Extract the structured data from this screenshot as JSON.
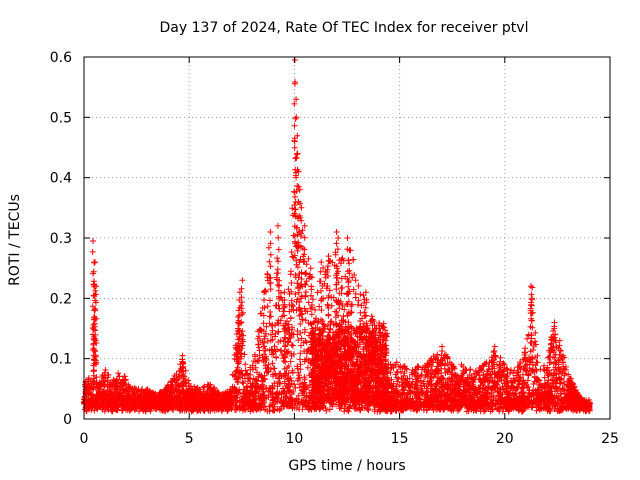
{
  "chart_data": {
    "type": "scatter",
    "title": "Day 137 of 2024, Rate Of TEC Index for receiver ptvl",
    "xlabel": "GPS time / hours",
    "ylabel": "ROTI / TECUs",
    "xlim": [
      0,
      25
    ],
    "ylim": [
      0,
      0.6
    ],
    "xticks": [
      0,
      5,
      10,
      15,
      20,
      25
    ],
    "yticks": [
      0,
      0.1,
      0.2,
      0.3,
      0.4,
      0.5,
      0.6
    ],
    "ytick_labels": [
      "0",
      "0.1",
      "0.2",
      "0.3",
      "0.4",
      "0.5",
      "0.6"
    ],
    "grid": true,
    "marker": "+",
    "color": "#ff0000",
    "profile": [
      [
        0.0,
        0.06
      ],
      [
        0.2,
        0.07
      ],
      [
        0.4,
        0.06
      ],
      [
        0.5,
        0.29
      ],
      [
        0.6,
        0.06
      ],
      [
        0.8,
        0.07
      ],
      [
        1.0,
        0.09
      ],
      [
        1.3,
        0.06
      ],
      [
        1.7,
        0.08
      ],
      [
        2.0,
        0.07
      ],
      [
        2.5,
        0.05
      ],
      [
        3.0,
        0.05
      ],
      [
        3.5,
        0.04
      ],
      [
        4.0,
        0.06
      ],
      [
        4.5,
        0.09
      ],
      [
        4.7,
        0.1
      ],
      [
        5.0,
        0.06
      ],
      [
        5.5,
        0.05
      ],
      [
        6.0,
        0.06
      ],
      [
        6.5,
        0.04
      ],
      [
        7.0,
        0.05
      ],
      [
        7.3,
        0.16
      ],
      [
        7.5,
        0.23
      ],
      [
        7.7,
        0.08
      ],
      [
        8.0,
        0.09
      ],
      [
        8.5,
        0.2
      ],
      [
        8.8,
        0.3
      ],
      [
        9.0,
        0.12
      ],
      [
        9.2,
        0.31
      ],
      [
        9.5,
        0.2
      ],
      [
        9.8,
        0.23
      ],
      [
        10.0,
        0.59
      ],
      [
        10.2,
        0.38
      ],
      [
        10.5,
        0.3
      ],
      [
        10.8,
        0.24
      ],
      [
        11.0,
        0.2
      ],
      [
        11.3,
        0.25
      ],
      [
        11.6,
        0.26
      ],
      [
        12.0,
        0.32
      ],
      [
        12.3,
        0.28
      ],
      [
        12.6,
        0.3
      ],
      [
        13.0,
        0.23
      ],
      [
        13.4,
        0.2
      ],
      [
        13.8,
        0.17
      ],
      [
        14.2,
        0.12
      ],
      [
        14.5,
        0.09
      ],
      [
        15.0,
        0.1
      ],
      [
        15.5,
        0.08
      ],
      [
        16.0,
        0.09
      ],
      [
        16.5,
        0.1
      ],
      [
        17.0,
        0.12
      ],
      [
        17.5,
        0.09
      ],
      [
        18.0,
        0.09
      ],
      [
        18.5,
        0.08
      ],
      [
        19.0,
        0.09
      ],
      [
        19.5,
        0.12
      ],
      [
        20.0,
        0.09
      ],
      [
        20.5,
        0.08
      ],
      [
        21.0,
        0.12
      ],
      [
        21.3,
        0.22
      ],
      [
        21.6,
        0.09
      ],
      [
        22.0,
        0.09
      ],
      [
        22.3,
        0.16
      ],
      [
        22.6,
        0.13
      ],
      [
        23.0,
        0.08
      ],
      [
        23.5,
        0.04
      ],
      [
        24.0,
        0.02
      ]
    ],
    "spikes": [
      [
        0.45,
        0.295
      ],
      [
        0.5,
        0.26
      ],
      [
        0.55,
        0.22
      ],
      [
        0.5,
        0.18
      ],
      [
        0.45,
        0.14
      ],
      [
        4.7,
        0.105
      ],
      [
        7.35,
        0.18
      ],
      [
        7.5,
        0.23
      ],
      [
        7.4,
        0.21
      ],
      [
        7.3,
        0.15
      ],
      [
        8.55,
        0.21
      ],
      [
        8.85,
        0.31
      ],
      [
        9.25,
        0.32
      ],
      [
        9.55,
        0.21
      ],
      [
        9.85,
        0.24
      ],
      [
        10.0,
        0.595
      ],
      [
        10.05,
        0.53
      ],
      [
        10.1,
        0.5
      ],
      [
        10.05,
        0.46
      ],
      [
        10.15,
        0.44
      ],
      [
        10.2,
        0.41
      ],
      [
        10.25,
        0.38
      ],
      [
        10.3,
        0.35
      ],
      [
        10.5,
        0.32
      ],
      [
        10.8,
        0.25
      ],
      [
        11.25,
        0.26
      ],
      [
        11.6,
        0.27
      ],
      [
        12.0,
        0.31
      ],
      [
        12.1,
        0.3
      ],
      [
        12.55,
        0.3
      ],
      [
        12.6,
        0.28
      ],
      [
        13.4,
        0.21
      ],
      [
        16.5,
        0.1
      ],
      [
        17.0,
        0.12
      ],
      [
        19.5,
        0.12
      ],
      [
        21.25,
        0.22
      ],
      [
        21.3,
        0.2
      ],
      [
        22.35,
        0.16
      ],
      [
        22.6,
        0.13
      ]
    ]
  }
}
